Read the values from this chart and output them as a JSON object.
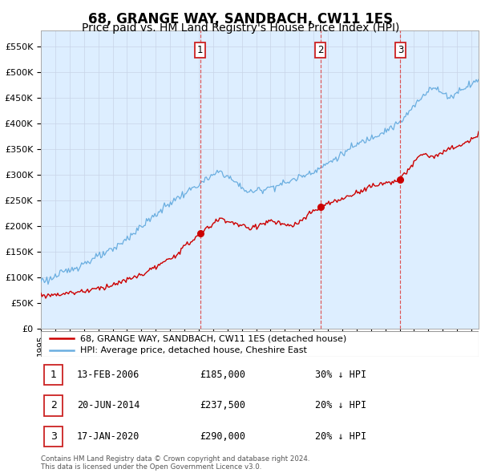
{
  "title": "68, GRANGE WAY, SANDBACH, CW11 1ES",
  "subtitle": "Price paid vs. HM Land Registry's House Price Index (HPI)",
  "title_fontsize": 12,
  "subtitle_fontsize": 10,
  "ylim": [
    0,
    580000
  ],
  "yticks": [
    0,
    50000,
    100000,
    150000,
    200000,
    250000,
    300000,
    350000,
    400000,
    450000,
    500000,
    550000
  ],
  "ytick_labels": [
    "£0",
    "£50K",
    "£100K",
    "£150K",
    "£200K",
    "£250K",
    "£300K",
    "£350K",
    "£400K",
    "£450K",
    "£500K",
    "£550K"
  ],
  "hpi_color": "#6aaee0",
  "hpi_fill_color": "#ddeeff",
  "price_color": "#cc0000",
  "background_color": "#ffffff",
  "grid_color": "#c8d4e8",
  "purchases": [
    {
      "date_year": 2006.1,
      "price": 185000,
      "label": "1"
    },
    {
      "date_year": 2014.47,
      "price": 237500,
      "label": "2"
    },
    {
      "date_year": 2020.05,
      "price": 290000,
      "label": "3"
    }
  ],
  "legend_property_label": "68, GRANGE WAY, SANDBACH, CW11 1ES (detached house)",
  "legend_hpi_label": "HPI: Average price, detached house, Cheshire East",
  "table_rows": [
    {
      "num": "1",
      "date": "13-FEB-2006",
      "price": "£185,000",
      "hpi": "30% ↓ HPI"
    },
    {
      "num": "2",
      "date": "20-JUN-2014",
      "price": "£237,500",
      "hpi": "20% ↓ HPI"
    },
    {
      "num": "3",
      "date": "17-JAN-2020",
      "price": "£290,000",
      "hpi": "20% ↓ HPI"
    }
  ],
  "footer": "Contains HM Land Registry data © Crown copyright and database right 2024.\nThis data is licensed under the Open Government Licence v3.0.",
  "xstart": 1995.0,
  "xend": 2025.5
}
